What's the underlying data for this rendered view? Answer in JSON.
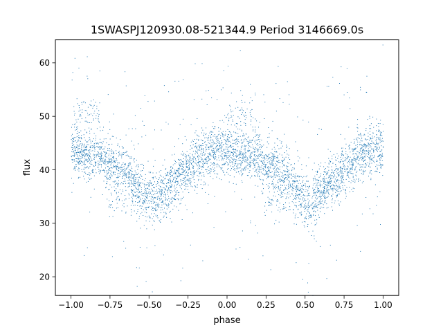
{
  "chart_data": {
    "type": "scatter",
    "title": "1SWASPJ120930.08-521344.9 Period 3146669.0s",
    "xlabel": "phase",
    "ylabel": "flux",
    "xlim": [
      -1.1,
      1.1
    ],
    "ylim": [
      16.5,
      64.3
    ],
    "xticks": [
      -1.0,
      -0.75,
      -0.5,
      -0.25,
      0.0,
      0.25,
      0.5,
      0.75,
      1.0
    ],
    "xtick_labels": [
      "−1.00",
      "−0.75",
      "−0.50",
      "−0.25",
      "0.00",
      "0.25",
      "0.50",
      "0.75",
      "1.00"
    ],
    "yticks": [
      20,
      30,
      40,
      50,
      60
    ],
    "ytick_labels": [
      "20",
      "30",
      "40",
      "50",
      "60"
    ],
    "grid": false,
    "point_color": "#1f77b4",
    "series": [
      {
        "phase": [
          -1.0,
          -0.975,
          -0.95,
          -0.925,
          -0.9,
          -0.875,
          -0.85,
          -0.825,
          -0.8,
          -0.775,
          -0.75,
          -0.725,
          -0.7,
          -0.675,
          -0.65,
          -0.625,
          -0.6,
          -0.575,
          -0.55,
          -0.525,
          -0.5,
          -0.475,
          -0.45,
          -0.425,
          -0.4,
          -0.375,
          -0.35,
          -0.325,
          -0.3,
          -0.275,
          -0.25,
          -0.225,
          -0.2,
          -0.175,
          -0.15,
          -0.125,
          -0.1,
          -0.075,
          -0.05,
          -0.025,
          0.0,
          0.025,
          0.05,
          0.075,
          0.1,
          0.125,
          0.15,
          0.175,
          0.2,
          0.225,
          0.25,
          0.275,
          0.3,
          0.325,
          0.35,
          0.375,
          0.4,
          0.425,
          0.45,
          0.475,
          0.5,
          0.525,
          0.55,
          0.575,
          0.6,
          0.625,
          0.65,
          0.675,
          0.7,
          0.725,
          0.75,
          0.775,
          0.8,
          0.825,
          0.85,
          0.875,
          0.9,
          0.925,
          0.95,
          0.975,
          1.0
        ],
        "flux_main": [
          44.0,
          43.5,
          43.0,
          43.0,
          42.5,
          43.0,
          42.5,
          43.0,
          42.5,
          41.5,
          41.0,
          40.5,
          40.5,
          40.0,
          39.5,
          39.0,
          38.0,
          37.0,
          36.5,
          35.5,
          35.0,
          34.5,
          34.0,
          35.0,
          36.0,
          37.0,
          37.5,
          38.0,
          38.5,
          39.5,
          40.0,
          41.0,
          41.5,
          42.0,
          42.5,
          43.0,
          43.5,
          43.5,
          44.0,
          44.0,
          44.0,
          43.5,
          43.0,
          43.0,
          42.5,
          43.0,
          42.5,
          43.0,
          42.5,
          41.5,
          41.0,
          40.5,
          40.5,
          40.0,
          39.5,
          39.0,
          38.0,
          37.0,
          36.5,
          35.5,
          35.0,
          34.5,
          34.0,
          35.0,
          36.0,
          37.0,
          37.5,
          38.0,
          38.5,
          39.5,
          40.0,
          41.0,
          41.5,
          42.0,
          42.5,
          43.0,
          43.5,
          43.5,
          44.0,
          44.0,
          44.0
        ],
        "flux_upper_band_phase": [
          [
            -1.0,
            -0.82
          ],
          [
            0.0,
            0.18
          ]
        ],
        "flux_upper_band_level": 51.0,
        "flux_lower_band_phase": [
          [
            -0.78,
            -0.6
          ],
          [
            0.22,
            0.4
          ]
        ],
        "flux_lower_band_level": 34.0
      }
    ]
  }
}
